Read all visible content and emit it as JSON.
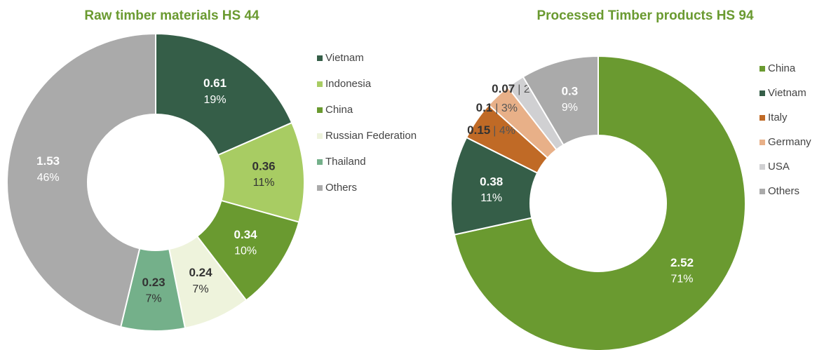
{
  "chart_data": [
    {
      "type": "pie",
      "title": "Raw timber materials HS 44",
      "categories": [
        "Vietnam",
        "Indonesia",
        "China",
        "Russian Federation",
        "Thailand",
        "Others"
      ],
      "values": [
        0.61,
        0.36,
        0.34,
        0.24,
        0.23,
        1.53
      ],
      "percent_labels": [
        "19%",
        "11%",
        "10%",
        "7%",
        "7%",
        "46%"
      ],
      "colors": [
        "#355e48",
        "#a8cc63",
        "#6a9a30",
        "#eef3dc",
        "#74b08a",
        "#aaaaaa"
      ],
      "label_colors": [
        "#ffffff",
        "#333333",
        "#ffffff",
        "#333333",
        "#333333",
        "#ffffff"
      ],
      "legend": "right"
    },
    {
      "type": "pie",
      "title": "Processed Timber products HS 94",
      "categories": [
        "China",
        "Vietnam",
        "Italy",
        "Germany",
        "USA",
        "Others"
      ],
      "values": [
        2.52,
        0.38,
        0.15,
        0.1,
        0.07,
        0.3
      ],
      "percent_labels": [
        "71%",
        "11%",
        "| 4%",
        "| 3%",
        "| 2%",
        "9%"
      ],
      "colors": [
        "#6a9a30",
        "#355e48",
        "#c06a26",
        "#e8b088",
        "#d0d0d2",
        "#aaaaaa"
      ],
      "label_colors": [
        "#ffffff",
        "#ffffff",
        "#333333",
        "#333333",
        "#333333",
        "#ffffff"
      ],
      "legend": "right"
    }
  ]
}
